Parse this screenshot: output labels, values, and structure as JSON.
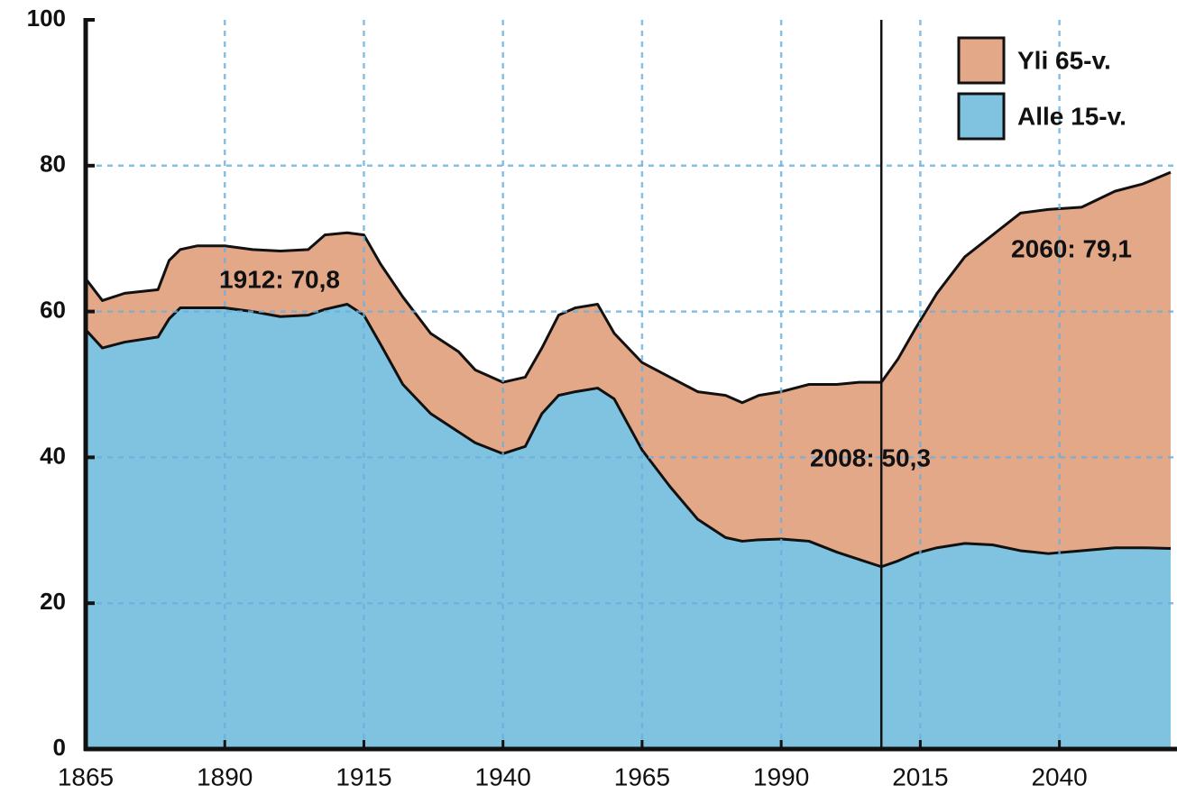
{
  "chart_data": {
    "type": "stacked_area",
    "x": [
      1865,
      1868,
      1872,
      1878,
      1880,
      1882,
      1885,
      1890,
      1895,
      1900,
      1905,
      1908,
      1912,
      1915,
      1918,
      1922,
      1927,
      1932,
      1935,
      1940,
      1944,
      1947,
      1950,
      1953,
      1957,
      1960,
      1965,
      1970,
      1975,
      1980,
      1983,
      1986,
      1990,
      1995,
      2000,
      2004,
      2008,
      2011,
      2014,
      2018,
      2023,
      2028,
      2033,
      2038,
      2044,
      2050,
      2055,
      2060
    ],
    "series": [
      {
        "name": "Alle 15-v.",
        "color": "#7fc3e0",
        "values": [
          57.5,
          55,
          55.8,
          56.5,
          59,
          60.5,
          60.5,
          60.5,
          60,
          59.3,
          59.5,
          60.3,
          61,
          59.5,
          55.5,
          50,
          46,
          43.5,
          42,
          40.5,
          41.5,
          46,
          48.5,
          49,
          49.5,
          48,
          41,
          36,
          31.5,
          29,
          28.5,
          28.7,
          28.8,
          28.5,
          27,
          26,
          25,
          25.8,
          26.8,
          27.6,
          28.2,
          28,
          27.2,
          26.8,
          27.2,
          27.6,
          27.6,
          27.5
        ]
      },
      {
        "name": "Yli 65-v.",
        "color": "#e3a888",
        "values": [
          7,
          6.5,
          6.7,
          6.5,
          8,
          8,
          8.5,
          8.5,
          8.5,
          9,
          9,
          10.2,
          9.8,
          11,
          11,
          12,
          11,
          11,
          10,
          9.8,
          9.5,
          9,
          11,
          11.5,
          11.5,
          9,
          12,
          15,
          17.5,
          19.5,
          19,
          19.8,
          20.2,
          21.5,
          23,
          24.3,
          25.3,
          27.7,
          30.7,
          34.9,
          39.3,
          42.5,
          46.3,
          47.2,
          47.1,
          48.9,
          49.9,
          51.6
        ]
      }
    ],
    "annotations": [
      "1912: 70,8",
      "2008: 50,3",
      "2060: 79,1"
    ],
    "vline": 2008,
    "xlim": [
      1865,
      2060
    ],
    "xticks": [
      1865,
      1890,
      1915,
      1940,
      1965,
      1990,
      2015,
      2040
    ],
    "ylim": [
      0,
      100
    ],
    "yticks": [
      0,
      20,
      40,
      60,
      80,
      100
    ],
    "grid": true,
    "legend": "top-right"
  }
}
